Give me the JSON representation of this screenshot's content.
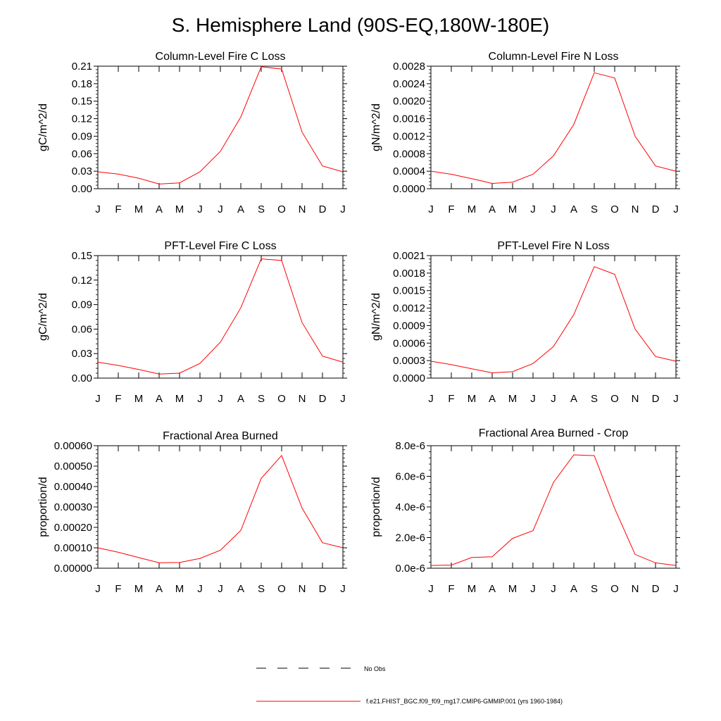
{
  "figure": {
    "title": "S. Hemisphere Land (90S-EQ,180W-180E)"
  },
  "legend": {
    "entries": [
      {
        "label": "No Obs",
        "style": "dashed",
        "color": "#000000"
      },
      {
        "label": "f.e21.FHIST_BGC.f09_f09_mg17.CMIP6-GMMIP.001 (yrs 1960-1984)",
        "style": "solid",
        "color": "#ff0000"
      }
    ]
  },
  "chart_data": [
    {
      "type": "line",
      "title": "Column-Level Fire C Loss",
      "ylabel": "gC/m^2/d",
      "xlabel": "",
      "categories": [
        "J",
        "F",
        "M",
        "A",
        "M",
        "J",
        "J",
        "A",
        "S",
        "O",
        "N",
        "D",
        "J"
      ],
      "ylim": [
        0,
        0.21
      ],
      "yticks": [
        0,
        0.03,
        0.06,
        0.09,
        0.12,
        0.15,
        0.18,
        0.21
      ],
      "ytick_labels": [
        "0.00",
        "0.03",
        "0.06",
        "0.09",
        "0.12",
        "0.15",
        "0.18",
        "0.21"
      ],
      "series": [
        {
          "name": "f.e21.FHIST_BGC.f09_f09_mg17.CMIP6-GMMIP.001 (yrs 1960-1984)",
          "color": "#ff0000",
          "values": [
            0.029,
            0.025,
            0.018,
            0.008,
            0.01,
            0.029,
            0.064,
            0.123,
            0.209,
            0.205,
            0.097,
            0.039,
            0.029
          ]
        }
      ]
    },
    {
      "type": "line",
      "title": "Column-Level Fire N Loss",
      "ylabel": "gN/m^2/d",
      "xlabel": "",
      "categories": [
        "J",
        "F",
        "M",
        "A",
        "M",
        "J",
        "J",
        "A",
        "S",
        "O",
        "N",
        "D",
        "J"
      ],
      "ylim": [
        0,
        0.0028
      ],
      "yticks": [
        0,
        0.0004,
        0.0008,
        0.0012,
        0.0016,
        0.002,
        0.0024,
        0.0028
      ],
      "ytick_labels": [
        "0.0000",
        "0.0004",
        "0.0008",
        "0.0012",
        "0.0016",
        "0.0020",
        "0.0024",
        "0.0028"
      ],
      "series": [
        {
          "name": "f.e21.FHIST_BGC.f09_f09_mg17.CMIP6-GMMIP.001 (yrs 1960-1984)",
          "color": "#ff0000",
          "values": [
            0.0004,
            0.00033,
            0.00023,
            0.00012,
            0.00015,
            0.00033,
            0.00075,
            0.00147,
            0.00265,
            0.00253,
            0.0012,
            0.00052,
            0.0004
          ]
        }
      ]
    },
    {
      "type": "line",
      "title": "PFT-Level Fire C Loss",
      "ylabel": "gC/m^2/d",
      "xlabel": "",
      "categories": [
        "J",
        "F",
        "M",
        "A",
        "M",
        "J",
        "J",
        "A",
        "S",
        "O",
        "N",
        "D",
        "J"
      ],
      "ylim": [
        0,
        0.15
      ],
      "yticks": [
        0,
        0.03,
        0.06,
        0.09,
        0.12,
        0.15
      ],
      "ytick_labels": [
        "0.00",
        "0.03",
        "0.06",
        "0.09",
        "0.12",
        "0.15"
      ],
      "series": [
        {
          "name": "f.e21.FHIST_BGC.f09_f09_mg17.CMIP6-GMMIP.001 (yrs 1960-1984)",
          "color": "#ff0000",
          "values": [
            0.0195,
            0.0155,
            0.0105,
            0.005,
            0.006,
            0.018,
            0.044,
            0.086,
            0.146,
            0.144,
            0.068,
            0.027,
            0.0195
          ]
        }
      ]
    },
    {
      "type": "line",
      "title": "PFT-Level Fire N Loss",
      "ylabel": "gN/m^2/d",
      "xlabel": "",
      "categories": [
        "J",
        "F",
        "M",
        "A",
        "M",
        "J",
        "J",
        "A",
        "S",
        "O",
        "N",
        "D",
        "J"
      ],
      "ylim": [
        0,
        0.0021
      ],
      "yticks": [
        0,
        0.0003,
        0.0006,
        0.0009,
        0.0012,
        0.0015,
        0.0018,
        0.0021
      ],
      "ytick_labels": [
        "0.0000",
        "0.0003",
        "0.0006",
        "0.0009",
        "0.0012",
        "0.0015",
        "0.0018",
        "0.0021"
      ],
      "series": [
        {
          "name": "f.e21.FHIST_BGC.f09_f09_mg17.CMIP6-GMMIP.001 (yrs 1960-1984)",
          "color": "#ff0000",
          "values": [
            0.00029,
            0.00023,
            0.00016,
            9e-05,
            0.00011,
            0.00025,
            0.00054,
            0.00109,
            0.00191,
            0.00178,
            0.00084,
            0.00037,
            0.00029
          ]
        }
      ]
    },
    {
      "type": "line",
      "title": "Fractional Area Burned",
      "ylabel": "proportion/d",
      "xlabel": "",
      "categories": [
        "J",
        "F",
        "M",
        "A",
        "M",
        "J",
        "J",
        "A",
        "S",
        "O",
        "N",
        "D",
        "J"
      ],
      "ylim": [
        0,
        0.0006
      ],
      "yticks": [
        0,
        0.0001,
        0.0002,
        0.0003,
        0.0004,
        0.0005,
        0.0006
      ],
      "ytick_labels": [
        "0.00000",
        "0.00010",
        "0.00020",
        "0.00030",
        "0.00040",
        "0.00050",
        "0.00060"
      ],
      "series": [
        {
          "name": "f.e21.FHIST_BGC.f09_f09_mg17.CMIP6-GMMIP.001 (yrs 1960-1984)",
          "color": "#ff0000",
          "values": [
            0.0001,
            7.8e-05,
            5.2e-05,
            2.7e-05,
            2.8e-05,
            4.8e-05,
            8.8e-05,
            0.000185,
            0.00044,
            0.000552,
            0.000295,
            0.000125,
            0.0001
          ]
        }
      ]
    },
    {
      "type": "line",
      "title": "Fractional Area Burned - Crop",
      "ylabel": "proportion/d",
      "xlabel": "",
      "categories": [
        "J",
        "F",
        "M",
        "A",
        "M",
        "J",
        "J",
        "A",
        "S",
        "O",
        "N",
        "D",
        "J"
      ],
      "ylim": [
        0,
        8e-06
      ],
      "yticks": [
        0,
        2e-06,
        4e-06,
        6e-06,
        8e-06
      ],
      "ytick_labels": [
        "0.0e-6",
        "2.0e-6",
        "4.0e-6",
        "6.0e-6",
        "8.0e-6"
      ],
      "series": [
        {
          "name": "f.e21.FHIST_BGC.f09_f09_mg17.CMIP6-GMMIP.001 (yrs 1960-1984)",
          "color": "#ff0000",
          "values": [
            1.8e-07,
            2e-07,
            7e-07,
            7.5e-07,
            1.95e-06,
            2.45e-06,
            5.6e-06,
            7.4e-06,
            7.35e-06,
            3.9e-06,
            9e-07,
            3.5e-07,
            1.8e-07
          ]
        }
      ]
    }
  ]
}
